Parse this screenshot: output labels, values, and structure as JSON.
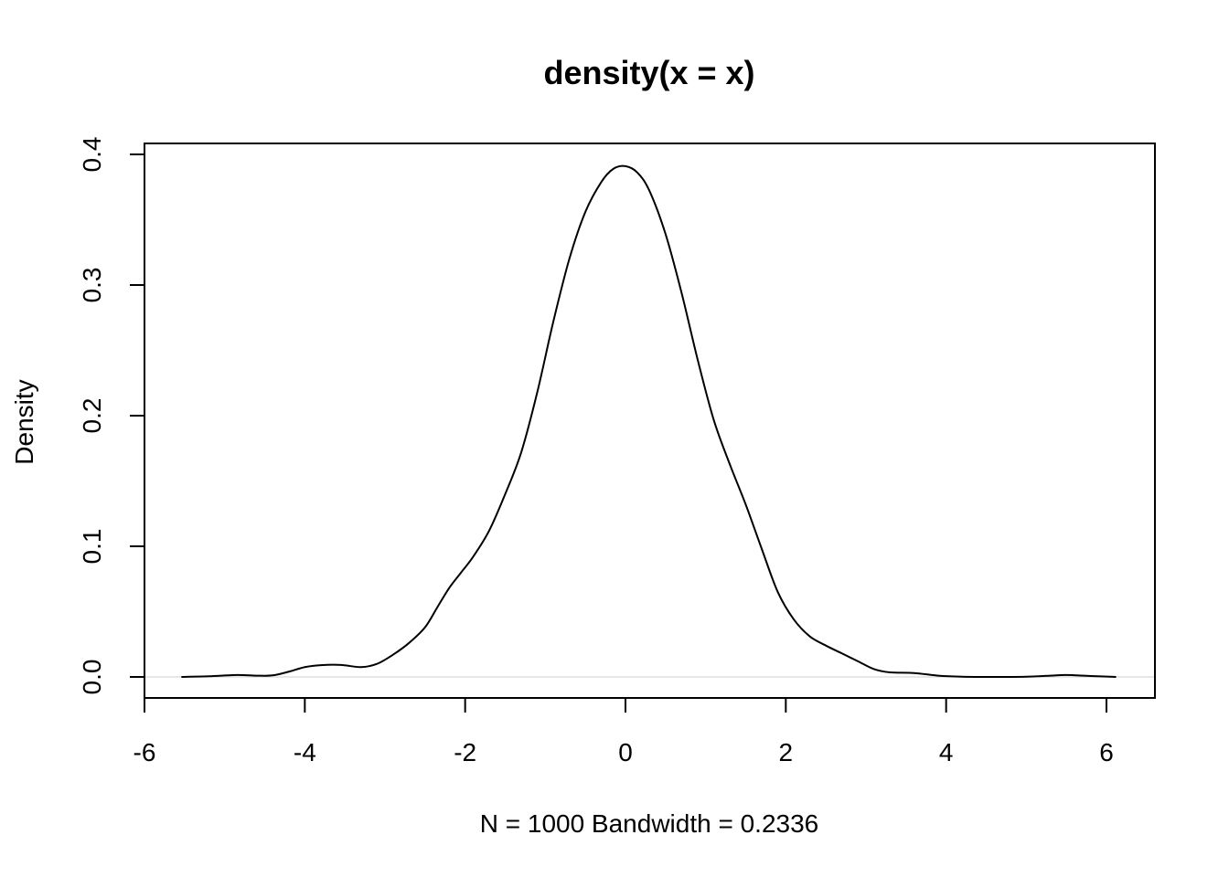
{
  "chart_data": {
    "type": "line",
    "title": "density(x = x)",
    "xlabel": "N = 1000   Bandwidth = 0.2336",
    "ylabel": "Density",
    "xlim": [
      -6,
      6
    ],
    "ylim": [
      0,
      0.4
    ],
    "grid": false,
    "x_ticks": [
      -6,
      -4,
      -2,
      0,
      2,
      4,
      6
    ],
    "x_tick_labels": [
      "-6",
      "-4",
      "-2",
      "0",
      "2",
      "4",
      "6"
    ],
    "y_ticks": [
      0.0,
      0.1,
      0.2,
      0.3,
      0.4
    ],
    "y_tick_labels": [
      "0.0",
      "0.1",
      "0.2",
      "0.3",
      "0.4"
    ],
    "zero_line_color": "#cfcfcf",
    "series": [
      {
        "color": "#000000",
        "x": [
          -5.54,
          -5.2,
          -4.85,
          -4.6,
          -4.4,
          -4.2,
          -4.0,
          -3.8,
          -3.55,
          -3.3,
          -3.1,
          -2.9,
          -2.7,
          -2.5,
          -2.35,
          -2.2,
          -2.05,
          -1.9,
          -1.7,
          -1.5,
          -1.3,
          -1.1,
          -0.9,
          -0.7,
          -0.5,
          -0.3,
          -0.15,
          0.0,
          0.15,
          0.3,
          0.5,
          0.7,
          0.9,
          1.1,
          1.3,
          1.5,
          1.7,
          1.9,
          2.1,
          2.3,
          2.5,
          2.7,
          2.9,
          3.1,
          3.3,
          3.6,
          3.9,
          4.2,
          4.6,
          5.0,
          5.3,
          5.5,
          5.8,
          6.12
        ],
        "y": [
          0.0,
          0.0005,
          0.0015,
          0.001,
          0.0012,
          0.004,
          0.0075,
          0.009,
          0.0092,
          0.0075,
          0.01,
          0.017,
          0.026,
          0.038,
          0.053,
          0.068,
          0.08,
          0.092,
          0.112,
          0.14,
          0.172,
          0.218,
          0.272,
          0.32,
          0.356,
          0.379,
          0.389,
          0.391,
          0.386,
          0.372,
          0.339,
          0.294,
          0.243,
          0.197,
          0.163,
          0.132,
          0.098,
          0.065,
          0.044,
          0.031,
          0.024,
          0.018,
          0.012,
          0.006,
          0.0035,
          0.003,
          0.001,
          0.0002,
          0.0,
          0.0002,
          0.001,
          0.0015,
          0.0007,
          0.0
        ]
      }
    ]
  }
}
